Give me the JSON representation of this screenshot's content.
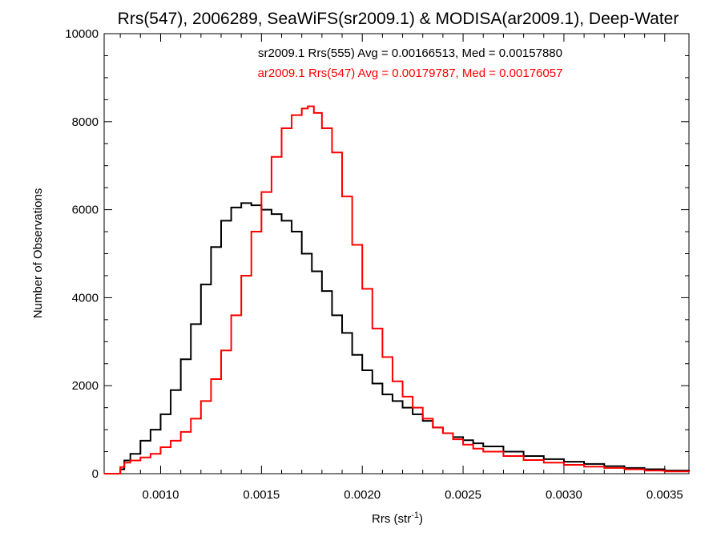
{
  "chart_data": {
    "type": "line",
    "title": "Rrs(547), 2006289, SeaWiFS(sr2009.1) & MODISA(ar2009.1), Deep-Water",
    "xlabel": "Rrs (str",
    "xlabel_sup": "-1",
    "xlabel_close": ")",
    "ylabel": "Number of Observations",
    "xlim": [
      0.00072,
      0.00362
    ],
    "ylim": [
      0,
      10000
    ],
    "x_ticks": [
      0.001,
      0.0015,
      0.002,
      0.0025,
      0.003,
      0.0035
    ],
    "x_tick_labels": [
      "0.0010",
      "0.0015",
      "0.0020",
      "0.0025",
      "0.0030",
      "0.0035"
    ],
    "y_ticks": [
      0,
      2000,
      4000,
      6000,
      8000,
      10000
    ],
    "y_tick_labels": [
      "0",
      "2000",
      "4000",
      "6000",
      "8000",
      "10000"
    ],
    "grid": false,
    "legend_position": "top-center",
    "series": [
      {
        "name": "sr2009.1 Rrs(555) Avg = 0.00166513, Med = 0.00157880",
        "color": "#000000",
        "x": [
          0.00072,
          0.00078,
          0.0008,
          0.00082,
          0.00085,
          0.0009,
          0.00095,
          0.001,
          0.00105,
          0.0011,
          0.00115,
          0.0012,
          0.00125,
          0.0013,
          0.00135,
          0.0014,
          0.00145,
          0.0015,
          0.00155,
          0.0016,
          0.00165,
          0.0017,
          0.00175,
          0.0018,
          0.00185,
          0.0019,
          0.00195,
          0.002,
          0.00205,
          0.0021,
          0.00215,
          0.0022,
          0.00225,
          0.0023,
          0.00235,
          0.0024,
          0.00245,
          0.0025,
          0.00255,
          0.0026,
          0.0027,
          0.0028,
          0.0029,
          0.003,
          0.0031,
          0.0032,
          0.0033,
          0.0034,
          0.0035,
          0.00362
        ],
        "y": [
          0,
          0,
          100,
          300,
          450,
          750,
          1000,
          1350,
          1900,
          2600,
          3400,
          4300,
          5150,
          5750,
          6050,
          6150,
          6100,
          6000,
          5900,
          5750,
          5500,
          5000,
          4600,
          4150,
          3600,
          3200,
          2700,
          2350,
          2050,
          1800,
          1650,
          1500,
          1350,
          1200,
          1050,
          920,
          830,
          760,
          690,
          620,
          500,
          400,
          330,
          270,
          220,
          170,
          130,
          100,
          70,
          40
        ]
      },
      {
        "name": "ar2009.1 Rrs(547) Avg = 0.00179787, Med = 0.00176057",
        "color": "#ff0000",
        "x": [
          0.00072,
          0.00078,
          0.0008,
          0.00082,
          0.00085,
          0.0009,
          0.00095,
          0.001,
          0.00105,
          0.0011,
          0.00115,
          0.0012,
          0.00125,
          0.0013,
          0.00135,
          0.0014,
          0.00145,
          0.0015,
          0.00155,
          0.0016,
          0.00165,
          0.0017,
          0.00173,
          0.00176,
          0.0018,
          0.00185,
          0.0019,
          0.00195,
          0.002,
          0.00205,
          0.0021,
          0.00215,
          0.0022,
          0.00225,
          0.0023,
          0.00235,
          0.0024,
          0.00245,
          0.0025,
          0.00255,
          0.0026,
          0.0027,
          0.0028,
          0.0029,
          0.003,
          0.0031,
          0.0032,
          0.0033,
          0.0034,
          0.0035,
          0.00362
        ],
        "y": [
          0,
          0,
          150,
          250,
          300,
          370,
          450,
          600,
          750,
          950,
          1250,
          1650,
          2150,
          2800,
          3600,
          4500,
          5500,
          6400,
          7200,
          7850,
          8150,
          8300,
          8350,
          8200,
          7850,
          7300,
          6300,
          5200,
          4200,
          3300,
          2650,
          2100,
          1750,
          1500,
          1250,
          1050,
          920,
          780,
          660,
          570,
          500,
          400,
          310,
          250,
          200,
          160,
          130,
          100,
          70,
          50,
          40
        ]
      }
    ]
  }
}
